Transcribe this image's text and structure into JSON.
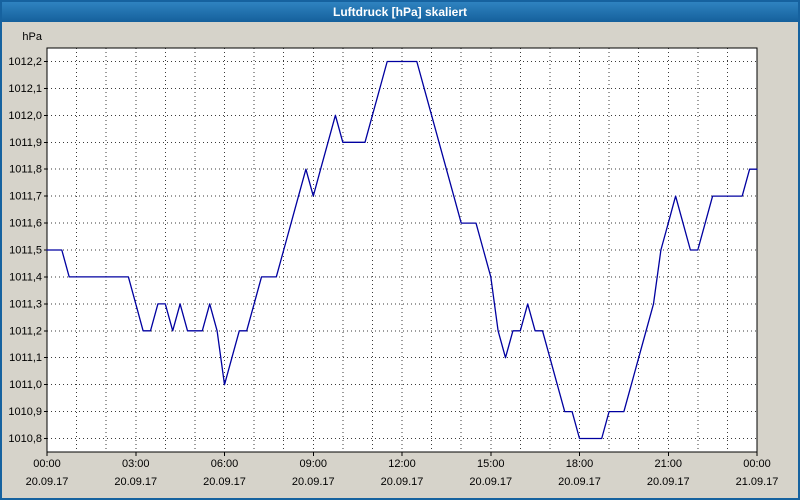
{
  "window": {
    "title": "Luftdruck [hPa] skaliert"
  },
  "colors": {
    "titlebar": "#1a6aaa",
    "title_text": "#ffffff",
    "page_bg": "#d6d3ca",
    "plot_bg": "#ffffff",
    "grid": "#3a3a3a",
    "border": "#000000",
    "line": "#0000a0"
  },
  "chart_data": {
    "type": "line",
    "title": "Luftdruck [hPa] skaliert",
    "ylabel": "hPa",
    "unit": "hPa",
    "grid": true,
    "legend": "none",
    "xlim": [
      0,
      24
    ],
    "ylim": [
      1010.75,
      1012.25
    ],
    "y_ticks": [
      {
        "v": 1012.2,
        "label": "1012,2"
      },
      {
        "v": 1012.1,
        "label": "1012,1"
      },
      {
        "v": 1012.0,
        "label": "1012,0"
      },
      {
        "v": 1011.9,
        "label": "1011,9"
      },
      {
        "v": 1011.8,
        "label": "1011,8"
      },
      {
        "v": 1011.7,
        "label": "1011,7"
      },
      {
        "v": 1011.6,
        "label": "1011,6"
      },
      {
        "v": 1011.5,
        "label": "1011,5"
      },
      {
        "v": 1011.4,
        "label": "1011,4"
      },
      {
        "v": 1011.3,
        "label": "1011,3"
      },
      {
        "v": 1011.2,
        "label": "1011,2"
      },
      {
        "v": 1011.1,
        "label": "1011,1"
      },
      {
        "v": 1011.0,
        "label": "1011,0"
      },
      {
        "v": 1010.9,
        "label": "1010,9"
      },
      {
        "v": 1010.8,
        "label": "1010,8"
      }
    ],
    "x_ticks": [
      {
        "t": 0,
        "time": "00:00",
        "date": "20.09.17"
      },
      {
        "t": 3,
        "time": "03:00",
        "date": "20.09.17"
      },
      {
        "t": 6,
        "time": "06:00",
        "date": "20.09.17"
      },
      {
        "t": 9,
        "time": "09:00",
        "date": "20.09.17"
      },
      {
        "t": 12,
        "time": "12:00",
        "date": "20.09.17"
      },
      {
        "t": 15,
        "time": "15:00",
        "date": "20.09.17"
      },
      {
        "t": 18,
        "time": "18:00",
        "date": "20.09.17"
      },
      {
        "t": 21,
        "time": "21:00",
        "date": "20.09.17"
      },
      {
        "t": 24,
        "time": "00:00",
        "date": "21.09.17"
      }
    ],
    "minor_x_step_hours": 1,
    "series": [
      {
        "name": "Luftdruck [hPa]",
        "color": "#0000a0",
        "points": [
          [
            0,
            1011.5
          ],
          [
            0.25,
            1011.5
          ],
          [
            0.5,
            1011.5
          ],
          [
            0.75,
            1011.4
          ],
          [
            1,
            1011.4
          ],
          [
            1.25,
            1011.4
          ],
          [
            1.5,
            1011.4
          ],
          [
            1.75,
            1011.4
          ],
          [
            2,
            1011.4
          ],
          [
            2.25,
            1011.4
          ],
          [
            2.5,
            1011.4
          ],
          [
            2.75,
            1011.4
          ],
          [
            3,
            1011.3
          ],
          [
            3.25,
            1011.2
          ],
          [
            3.5,
            1011.2
          ],
          [
            3.75,
            1011.3
          ],
          [
            4,
            1011.3
          ],
          [
            4.25,
            1011.2
          ],
          [
            4.5,
            1011.3
          ],
          [
            4.75,
            1011.2
          ],
          [
            5,
            1011.2
          ],
          [
            5.25,
            1011.2
          ],
          [
            5.5,
            1011.3
          ],
          [
            5.75,
            1011.2
          ],
          [
            6,
            1011.0
          ],
          [
            6.25,
            1011.1
          ],
          [
            6.5,
            1011.2
          ],
          [
            6.75,
            1011.2
          ],
          [
            7,
            1011.3
          ],
          [
            7.25,
            1011.4
          ],
          [
            7.5,
            1011.4
          ],
          [
            7.75,
            1011.4
          ],
          [
            8,
            1011.5
          ],
          [
            8.25,
            1011.6
          ],
          [
            8.5,
            1011.7
          ],
          [
            8.75,
            1011.8
          ],
          [
            9,
            1011.7
          ],
          [
            9.25,
            1011.8
          ],
          [
            9.5,
            1011.9
          ],
          [
            9.75,
            1012.0
          ],
          [
            10,
            1011.9
          ],
          [
            10.25,
            1011.9
          ],
          [
            10.5,
            1011.9
          ],
          [
            10.75,
            1011.9
          ],
          [
            11,
            1012.0
          ],
          [
            11.25,
            1012.1
          ],
          [
            11.5,
            1012.2
          ],
          [
            11.75,
            1012.2
          ],
          [
            12,
            1012.2
          ],
          [
            12.25,
            1012.2
          ],
          [
            12.5,
            1012.2
          ],
          [
            12.75,
            1012.1
          ],
          [
            13,
            1012.0
          ],
          [
            13.25,
            1011.9
          ],
          [
            13.5,
            1011.8
          ],
          [
            13.75,
            1011.7
          ],
          [
            14,
            1011.6
          ],
          [
            14.25,
            1011.6
          ],
          [
            14.5,
            1011.6
          ],
          [
            14.75,
            1011.5
          ],
          [
            15,
            1011.4
          ],
          [
            15.25,
            1011.2
          ],
          [
            15.5,
            1011.1
          ],
          [
            15.75,
            1011.2
          ],
          [
            16,
            1011.2
          ],
          [
            16.25,
            1011.3
          ],
          [
            16.5,
            1011.2
          ],
          [
            16.75,
            1011.2
          ],
          [
            17,
            1011.1
          ],
          [
            17.25,
            1011.0
          ],
          [
            17.5,
            1010.9
          ],
          [
            17.75,
            1010.9
          ],
          [
            18,
            1010.8
          ],
          [
            18.25,
            1010.8
          ],
          [
            18.5,
            1010.8
          ],
          [
            18.75,
            1010.8
          ],
          [
            19,
            1010.9
          ],
          [
            19.25,
            1010.9
          ],
          [
            19.5,
            1010.9
          ],
          [
            19.75,
            1011.0
          ],
          [
            20,
            1011.1
          ],
          [
            20.25,
            1011.2
          ],
          [
            20.5,
            1011.3
          ],
          [
            20.75,
            1011.5
          ],
          [
            21,
            1011.6
          ],
          [
            21.25,
            1011.7
          ],
          [
            21.5,
            1011.6
          ],
          [
            21.75,
            1011.5
          ],
          [
            22,
            1011.5
          ],
          [
            22.25,
            1011.6
          ],
          [
            22.5,
            1011.7
          ],
          [
            22.75,
            1011.7
          ],
          [
            23,
            1011.7
          ],
          [
            23.25,
            1011.7
          ],
          [
            23.5,
            1011.7
          ],
          [
            23.75,
            1011.8
          ],
          [
            24,
            1011.8
          ]
        ]
      }
    ]
  }
}
